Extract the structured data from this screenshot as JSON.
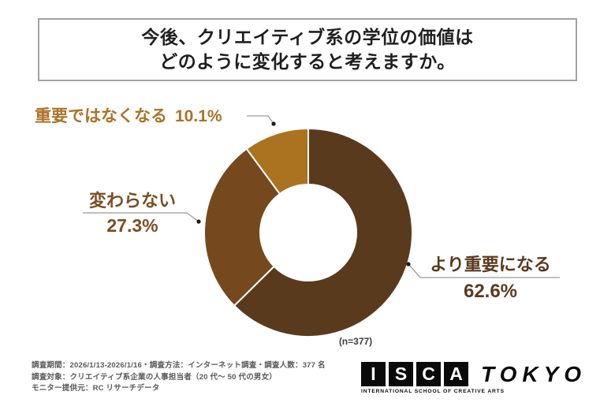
{
  "title": {
    "line1": "今後、クリエイティブ系の学位の価値は",
    "line2": "どのように変化すると考えますか。"
  },
  "chart_data": {
    "type": "pie",
    "subtype": "donut",
    "title": "今後、クリエイティブ系の学位の価値はどのように変化すると考えますか。",
    "sample_label": "(n=377)",
    "start_angle_deg": 0,
    "direction": "clockwise",
    "legend_position": "callouts",
    "segments": [
      {
        "label": "より重要になる",
        "value": 62.6,
        "percent_label": "62.6%",
        "color": "#593a1c"
      },
      {
        "label": "変わらない",
        "value": 27.3,
        "percent_label": "27.3%",
        "color": "#75491d"
      },
      {
        "label": "重要ではなくなる",
        "value": 10.1,
        "percent_label": "10.1%",
        "color": "#ab721f"
      }
    ]
  },
  "footer": {
    "line1": "調査期間：2026/1/13-2026/1/16・調査方法：インターネット調査・調査人数：377 名",
    "line2": "調査対象：クリエイティブ系企業の人事担当者（20 代〜 50 代の男女）",
    "line3": "モニター提供元：RC リサーチデータ"
  },
  "logo": {
    "letters": [
      "I",
      "S",
      "C",
      "A"
    ],
    "wordmark": "TOKYO",
    "subtitle": "INTERNATIONAL SCHOOL OF CREATIVE ARTS"
  },
  "colors": {
    "increase_brown": "#593a1c",
    "unchanged_brown": "#75491d",
    "decrease_gold": "#ab721f",
    "leader_line": "#999999",
    "leader_dot": "#1a1a1a",
    "title_border": "#a3a3a3",
    "footer_text": "#595959"
  }
}
